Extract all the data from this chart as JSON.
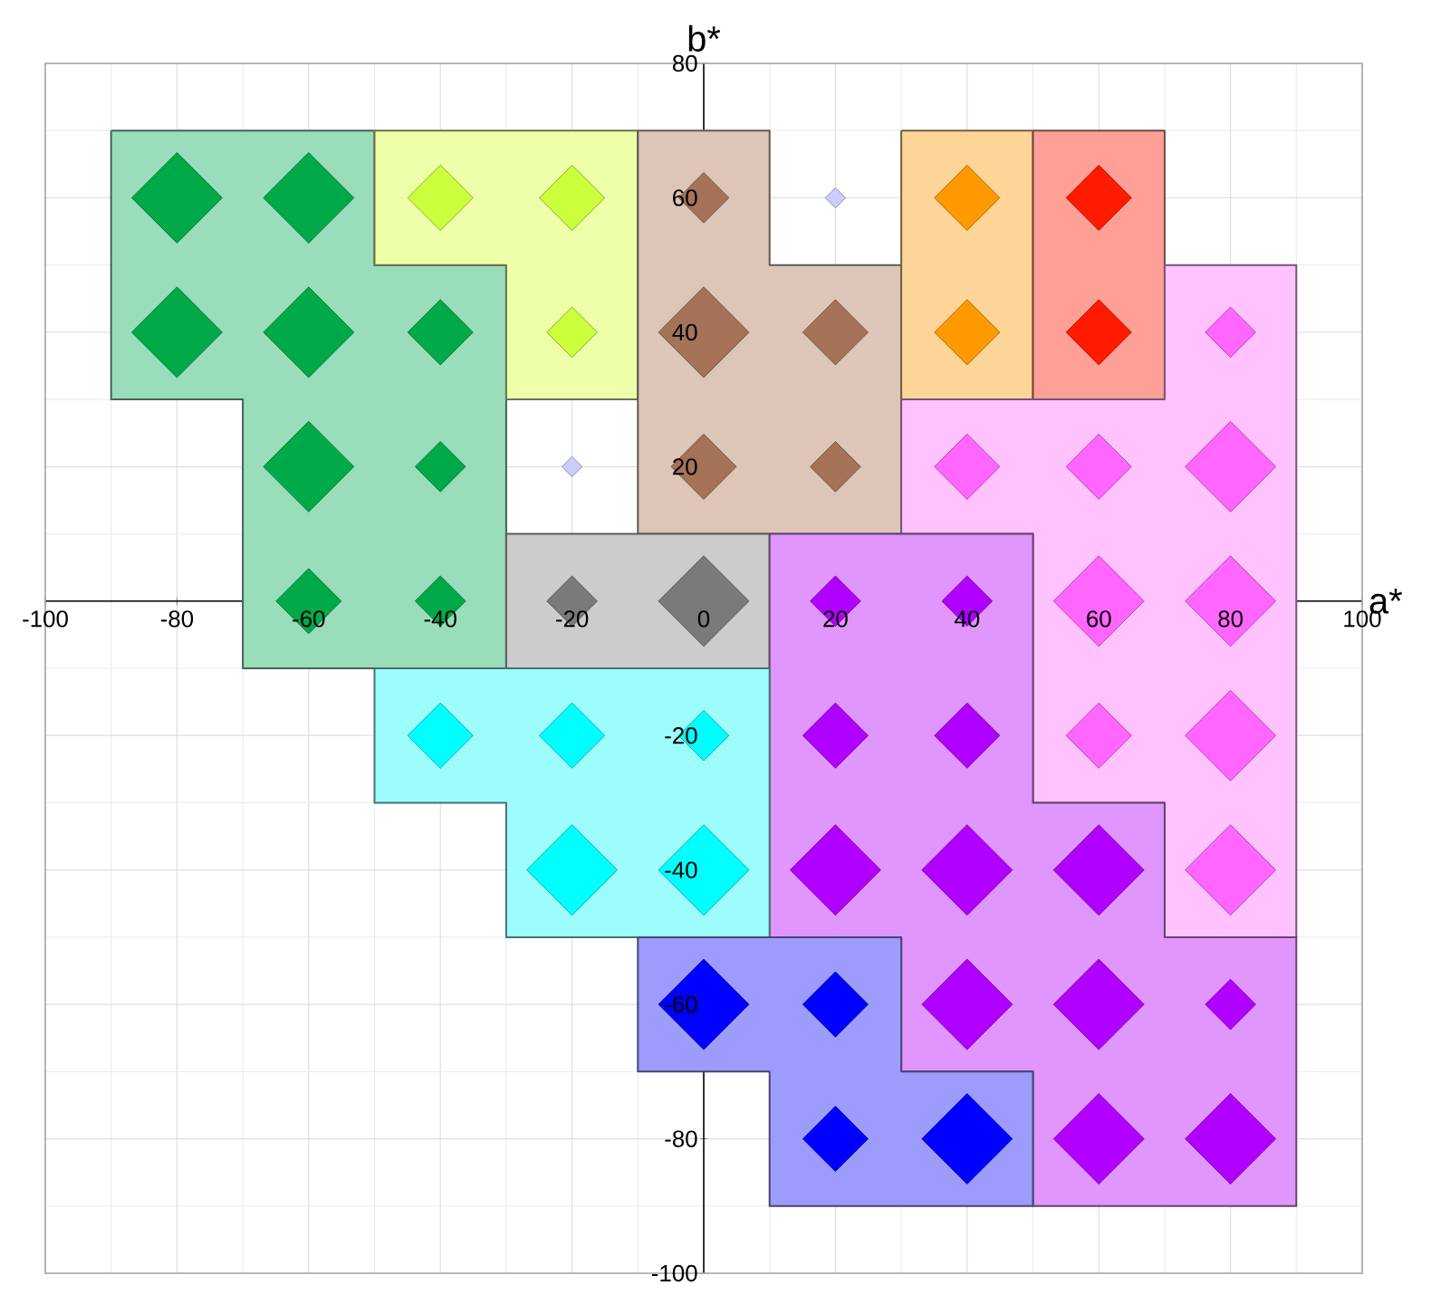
{
  "chart_data": {
    "type": "bubble",
    "xlabel": "a*",
    "ylabel": "b*",
    "marker": "diamond",
    "grid": true,
    "xlim": [
      -100,
      100
    ],
    "ylim": [
      -100,
      80
    ],
    "xticks": [
      -100,
      -80,
      -60,
      -40,
      -20,
      0,
      20,
      40,
      60,
      80,
      100
    ],
    "yticks": [
      -100,
      -80,
      -60,
      -40,
      -20,
      {
        "value": 0,
        "label": null
      },
      20,
      40,
      60,
      80
    ],
    "series": [
      {
        "type": "area",
        "marker": "none",
        "color": "#99ddbb",
        "x": [
          -90,
          -50,
          -50,
          -30,
          -30,
          -70,
          -70,
          -90
        ],
        "values": [
          70,
          70,
          50,
          50,
          -10,
          -10,
          30,
          30
        ]
      },
      {
        "type": "area",
        "marker": "none",
        "color": "#eeffaa",
        "x": [
          -50,
          -10,
          -10,
          -30,
          -30,
          -50
        ],
        "values": [
          70,
          70,
          30,
          30,
          50,
          50
        ]
      },
      {
        "type": "area",
        "marker": "none",
        "color": "#ddc6b8",
        "x": [
          -10,
          10,
          10,
          30,
          30,
          -10
        ],
        "values": [
          70,
          70,
          50,
          50,
          10,
          10
        ]
      },
      {
        "type": "area",
        "marker": "none",
        "color": "#fdd598",
        "x": [
          30,
          50,
          50,
          30
        ],
        "values": [
          70,
          70,
          30,
          30
        ]
      },
      {
        "type": "area",
        "marker": "none",
        "color": "#ffa096",
        "x": [
          50,
          70,
          70,
          50
        ],
        "values": [
          70,
          70,
          30,
          30
        ]
      },
      {
        "type": "area",
        "marker": "none",
        "color": "#ffc2ff",
        "x": [
          30,
          70,
          70,
          90,
          90,
          70,
          70,
          50,
          50,
          30
        ],
        "values": [
          30,
          30,
          50,
          50,
          -50,
          -50,
          -30,
          -30,
          10,
          10
        ]
      },
      {
        "type": "area",
        "marker": "none",
        "color": "#cccccc",
        "x": [
          -30,
          10,
          10,
          -30
        ],
        "values": [
          10,
          10,
          -10,
          -10
        ]
      },
      {
        "type": "area",
        "marker": "none",
        "color": "#e096fc",
        "x": [
          10,
          50,
          50,
          70,
          70,
          90,
          90,
          50,
          50,
          30,
          30,
          10
        ],
        "values": [
          10,
          10,
          -30,
          -30,
          -50,
          -50,
          -90,
          -90,
          -70,
          -70,
          -50,
          -50
        ]
      },
      {
        "type": "area",
        "marker": "none",
        "color": "#9dfdfd",
        "x": [
          -50,
          10,
          10,
          -30,
          -30,
          -50
        ],
        "values": [
          -10,
          -10,
          -50,
          -50,
          -30,
          -30
        ]
      },
      {
        "type": "area",
        "marker": "none",
        "color": "#9c9cfc",
        "x": [
          -10,
          30,
          30,
          50,
          50,
          10,
          10,
          -10
        ],
        "values": [
          -50,
          -50,
          -70,
          -70,
          -90,
          -90,
          -70,
          -70
        ]
      },
      {
        "color": "#00aa48",
        "x": [
          -80,
          -60,
          -80,
          -60,
          -40,
          -60,
          -40,
          -60,
          -40
        ],
        "values": [
          60,
          60,
          40,
          40,
          40,
          20,
          20,
          0,
          0
        ],
        "sizes": [
          1,
          1,
          1,
          1,
          0.52,
          1,
          0.31,
          0.52,
          0.31
        ]
      },
      {
        "color": "#ccff3c",
        "x": [
          -40,
          -20,
          -20
        ],
        "values": [
          60,
          60,
          40
        ],
        "sizes": [
          0.52,
          0.52,
          0.31
        ]
      },
      {
        "color": "#a57358",
        "x": [
          0,
          0,
          20,
          0,
          20
        ],
        "values": [
          60,
          40,
          40,
          20,
          20
        ],
        "sizes": [
          0.31,
          1,
          0.52,
          0.52,
          0.31
        ]
      },
      {
        "color": "#ff9900",
        "x": [
          40,
          40
        ],
        "values": [
          60,
          40
        ],
        "sizes": [
          0.52,
          0.52
        ]
      },
      {
        "color": "#ff1a00",
        "x": [
          60,
          60
        ],
        "values": [
          60,
          40
        ],
        "sizes": [
          0.52,
          0.52
        ]
      },
      {
        "color": "#ff66ff",
        "x": [
          80,
          40,
          60,
          80,
          60,
          80,
          60,
          80,
          80
        ],
        "values": [
          40,
          20,
          20,
          20,
          0,
          0,
          -20,
          -20,
          -40
        ],
        "sizes": [
          0.31,
          0.52,
          0.52,
          1,
          1,
          1,
          0.52,
          1,
          1
        ]
      },
      {
        "color": "#7a7a7a",
        "x": [
          -20,
          0
        ],
        "values": [
          0,
          0
        ],
        "sizes": [
          0.31,
          1
        ]
      },
      {
        "color": "#b000ff",
        "x": [
          20,
          40,
          20,
          40,
          20,
          40,
          60,
          40,
          60,
          80,
          60,
          80
        ],
        "values": [
          0,
          0,
          -20,
          -20,
          -40,
          -40,
          -40,
          -60,
          -60,
          -60,
          -80,
          -80
        ],
        "sizes": [
          0.31,
          0.31,
          0.52,
          0.52,
          1,
          1,
          1,
          1,
          1,
          0.31,
          1,
          1
        ]
      },
      {
        "color": "#00ffff",
        "x": [
          -40,
          -20,
          0,
          -20,
          0
        ],
        "values": [
          -20,
          -20,
          -20,
          -40,
          -40
        ],
        "sizes": [
          0.52,
          0.52,
          0.31,
          1,
          1
        ]
      },
      {
        "color": "#0000ff",
        "x": [
          0,
          20,
          20,
          40
        ],
        "values": [
          -60,
          -60,
          -80,
          -80
        ],
        "sizes": [
          1,
          0.52,
          0.52,
          1
        ]
      },
      {
        "color": "#ccccff",
        "x": [
          20,
          -20
        ],
        "values": [
          60,
          20
        ],
        "sizes": [
          0.05,
          0.05
        ]
      }
    ]
  }
}
